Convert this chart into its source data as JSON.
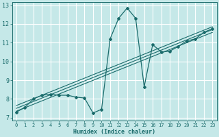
{
  "xlabel": "Humidex (Indice chaleur)",
  "ylabel": "",
  "bg_color": "#c5e8e8",
  "grid_color": "#ffffff",
  "line_color": "#1a6b6b",
  "xlim": [
    -0.5,
    23.5
  ],
  "ylim": [
    6.85,
    13.15
  ],
  "xticks": [
    0,
    1,
    2,
    3,
    4,
    5,
    6,
    7,
    8,
    9,
    10,
    11,
    12,
    13,
    14,
    15,
    16,
    17,
    18,
    19,
    20,
    21,
    22,
    23
  ],
  "yticks": [
    7,
    8,
    9,
    10,
    11,
    12,
    13
  ],
  "main_x": [
    0,
    1,
    2,
    3,
    4,
    5,
    6,
    7,
    8,
    9,
    10,
    11,
    12,
    13,
    14,
    15,
    16,
    17,
    18,
    19,
    20,
    21,
    22,
    23
  ],
  "main_y": [
    7.3,
    7.55,
    8.0,
    8.2,
    8.25,
    8.2,
    8.2,
    8.1,
    8.05,
    7.25,
    7.45,
    11.2,
    12.3,
    12.85,
    12.3,
    8.65,
    10.9,
    10.5,
    10.55,
    10.8,
    11.1,
    11.2,
    11.55,
    11.75
  ],
  "reg_lines": [
    {
      "x": [
        0,
        23
      ],
      "y": [
        7.35,
        11.55
      ]
    },
    {
      "x": [
        0,
        23
      ],
      "y": [
        7.5,
        11.7
      ]
    },
    {
      "x": [
        0,
        23
      ],
      "y": [
        7.65,
        11.85
      ]
    }
  ]
}
